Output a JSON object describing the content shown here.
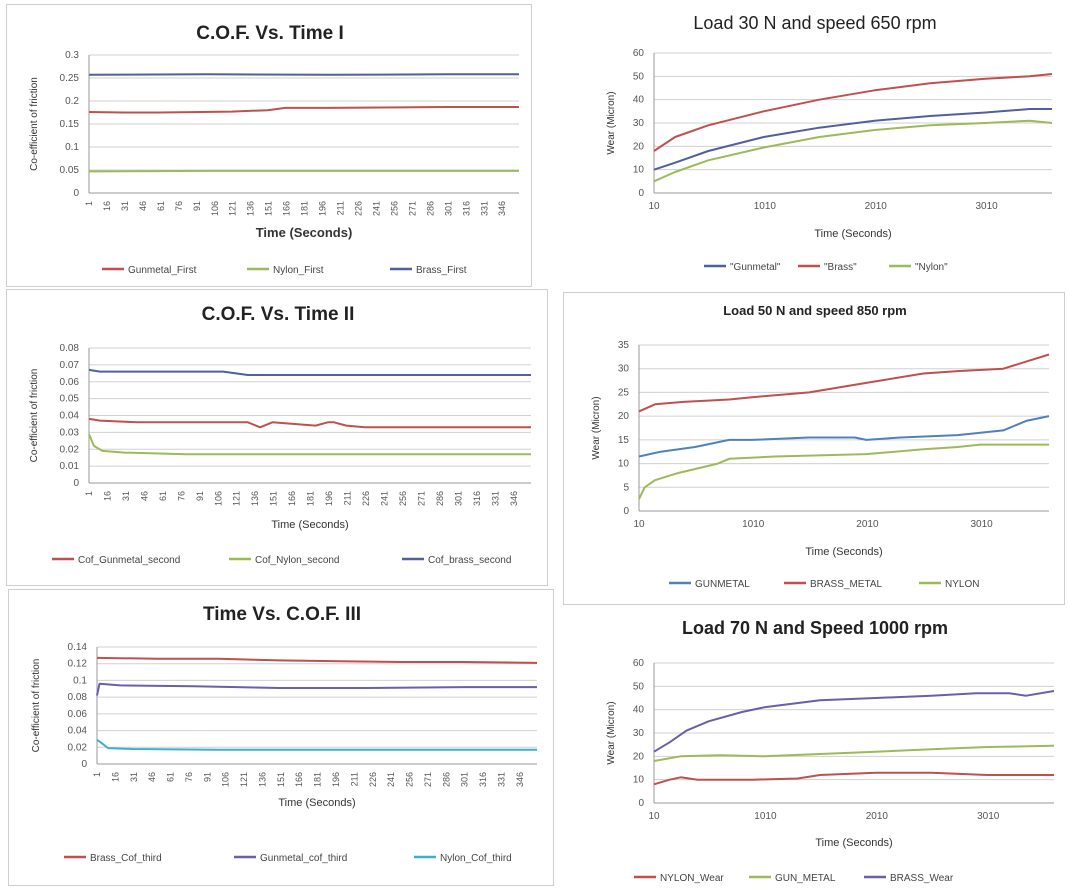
{
  "chart_data": [
    {
      "type": "line",
      "title": "C.O.F. Vs. Time I",
      "xlabel": "Time (Seconds)",
      "ylabel": "Co-efficient of friction",
      "ylim": [
        0,
        0.3
      ],
      "yticks": [
        "0",
        "0.05",
        "0.1",
        "0.15",
        "0.2",
        "0.25",
        "0.3"
      ],
      "xticks": [
        "1",
        "16",
        "31",
        "46",
        "61",
        "76",
        "91",
        "106",
        "121",
        "136",
        "151",
        "166",
        "181",
        "196",
        "211",
        "226",
        "241",
        "256",
        "271",
        "286",
        "301",
        "316",
        "331",
        "346"
      ],
      "xlim": [
        1,
        360
      ],
      "grid": true,
      "legend": "bottom",
      "series": [
        {
          "name": "Gunmetal_First",
          "color": "#c0504d",
          "x": [
            1,
            30,
            60,
            120,
            150,
            165,
            200,
            260,
            300,
            360
          ],
          "y": [
            0.176,
            0.175,
            0.175,
            0.177,
            0.18,
            0.185,
            0.185,
            0.186,
            0.187,
            0.187
          ]
        },
        {
          "name": "Nylon_First",
          "color": "#9bbb59",
          "x": [
            1,
            100,
            200,
            300,
            360
          ],
          "y": [
            0.047,
            0.048,
            0.048,
            0.048,
            0.048
          ]
        },
        {
          "name": "Brass_First",
          "color": "#4f5f9f",
          "x": [
            1,
            100,
            200,
            300,
            360
          ],
          "y": [
            0.257,
            0.258,
            0.257,
            0.258,
            0.258
          ]
        }
      ]
    },
    {
      "type": "line",
      "title": "C.O.F. Vs. Time II",
      "xlabel": "Time (Seconds)",
      "ylabel": "Co-efficient of friction",
      "ylim": [
        0,
        0.08
      ],
      "yticks": [
        "0",
        "0.01",
        "0.02",
        "0.03",
        "0.04",
        "0.05",
        "0.06",
        "0.07",
        "0.08"
      ],
      "xticks": [
        "1",
        "16",
        "31",
        "46",
        "61",
        "76",
        "91",
        "106",
        "121",
        "136",
        "151",
        "166",
        "181",
        "196",
        "211",
        "226",
        "241",
        "256",
        "271",
        "286",
        "301",
        "316",
        "331",
        "346"
      ],
      "xlim": [
        1,
        360
      ],
      "grid": true,
      "legend": "bottom",
      "series": [
        {
          "name": "Cof_Gunmetal_second",
          "color": "#c0504d",
          "x": [
            1,
            10,
            40,
            100,
            130,
            140,
            150,
            185,
            195,
            200,
            210,
            225,
            260,
            300,
            360
          ],
          "y": [
            0.038,
            0.037,
            0.036,
            0.036,
            0.036,
            0.033,
            0.036,
            0.034,
            0.036,
            0.036,
            0.034,
            0.033,
            0.033,
            0.033,
            0.033
          ]
        },
        {
          "name": "Cof_Nylon_second",
          "color": "#9bbb59",
          "x": [
            1,
            5,
            12,
            30,
            80,
            150,
            250,
            360
          ],
          "y": [
            0.029,
            0.022,
            0.019,
            0.018,
            0.017,
            0.017,
            0.017,
            0.017
          ]
        },
        {
          "name": "Cof_brass_second",
          "color": "#4f5f9f",
          "x": [
            1,
            10,
            60,
            110,
            130,
            150,
            200,
            260,
            340,
            360
          ],
          "y": [
            0.067,
            0.066,
            0.066,
            0.066,
            0.064,
            0.064,
            0.064,
            0.064,
            0.064,
            0.064
          ]
        }
      ]
    },
    {
      "type": "line",
      "title": "Time Vs. C.O.F. III",
      "xlabel": "Time (Seconds)",
      "ylabel": "Co-efficient of friction",
      "ylim": [
        0,
        0.14
      ],
      "yticks": [
        "0",
        "0.02",
        "0.04",
        "0.06",
        "0.08",
        "0.1",
        "0.12",
        "0.14"
      ],
      "xticks": [
        "1",
        "16",
        "31",
        "46",
        "61",
        "76",
        "91",
        "106",
        "121",
        "136",
        "151",
        "166",
        "181",
        "196",
        "211",
        "226",
        "241",
        "256",
        "271",
        "286",
        "301",
        "316",
        "331",
        "346"
      ],
      "xlim": [
        1,
        360
      ],
      "grid": true,
      "legend": "bottom",
      "series": [
        {
          "name": "Brass_Cof_third",
          "color": "#c0504d",
          "x": [
            1,
            50,
            100,
            150,
            200,
            250,
            300,
            360
          ],
          "y": [
            0.127,
            0.126,
            0.126,
            0.124,
            0.123,
            0.122,
            0.122,
            0.121
          ]
        },
        {
          "name": "Gunmetal_cof_third",
          "color": "#6a5fa8",
          "x": [
            1,
            3,
            20,
            80,
            150,
            220,
            300,
            360
          ],
          "y": [
            0.082,
            0.096,
            0.094,
            0.093,
            0.091,
            0.091,
            0.092,
            0.092
          ]
        },
        {
          "name": "Nylon_Cof_third",
          "color": "#3cb0c8",
          "x": [
            1,
            4,
            10,
            30,
            100,
            200,
            300,
            360
          ],
          "y": [
            0.029,
            0.026,
            0.019,
            0.018,
            0.017,
            0.017,
            0.017,
            0.017
          ]
        }
      ]
    },
    {
      "type": "line",
      "title": "Load 30 N and speed 650 rpm",
      "xlabel": "Time (Seconds)",
      "ylabel": "Wear (Micron)",
      "ylim": [
        0,
        60
      ],
      "yticks": [
        "0",
        "10",
        "20",
        "30",
        "40",
        "50",
        "60"
      ],
      "xticks": [
        "10",
        "1010",
        "2010",
        "3010"
      ],
      "xlim": [
        10,
        3600
      ],
      "grid": true,
      "legend": "bottom",
      "series": [
        {
          "name": "\"Gunmetal\"",
          "color": "#4f5f9f",
          "x": [
            10,
            200,
            500,
            1000,
            1500,
            2000,
            2500,
            3000,
            3400,
            3600
          ],
          "y": [
            10,
            13,
            18,
            24,
            28,
            31,
            33,
            34.5,
            36,
            36
          ]
        },
        {
          "name": "\"Brass\"",
          "color": "#c0504d",
          "x": [
            10,
            200,
            500,
            1000,
            1500,
            2000,
            2500,
            3000,
            3400,
            3600
          ],
          "y": [
            18,
            24,
            29,
            35,
            40,
            44,
            47,
            49,
            50,
            51
          ]
        },
        {
          "name": "\"Nylon\"",
          "color": "#9bbb59",
          "x": [
            10,
            200,
            500,
            1000,
            1500,
            2000,
            2500,
            3000,
            3400,
            3600
          ],
          "y": [
            5,
            9,
            14,
            19.5,
            24,
            27,
            29,
            30,
            31,
            30
          ]
        }
      ]
    },
    {
      "type": "line",
      "title": "Load 50 N and speed 850 rpm",
      "xlabel": "Time (Seconds)",
      "ylabel": "Wear (Micron)",
      "ylim": [
        0,
        35
      ],
      "yticks": [
        "0",
        "5",
        "10",
        "15",
        "20",
        "25",
        "30",
        "35"
      ],
      "xticks": [
        "10",
        "1010",
        "2010",
        "3010"
      ],
      "xlim": [
        10,
        3600
      ],
      "grid": true,
      "legend": "bottom",
      "series": [
        {
          "name": "GUNMETAL",
          "color": "#4f81bd",
          "x": [
            10,
            200,
            500,
            800,
            1000,
            1500,
            1900,
            2000,
            2300,
            2800,
            3200,
            3400,
            3600
          ],
          "y": [
            11.5,
            12.5,
            13.5,
            15,
            15,
            15.5,
            15.5,
            15,
            15.5,
            16,
            17,
            19,
            20
          ]
        },
        {
          "name": "BRASS_METAL",
          "color": "#c0504d",
          "x": [
            10,
            150,
            400,
            800,
            1000,
            1500,
            2000,
            2500,
            2800,
            3200,
            3400,
            3600
          ],
          "y": [
            21,
            22.5,
            23,
            23.5,
            24,
            25,
            27,
            29,
            29.5,
            30,
            31.5,
            33
          ]
        },
        {
          "name": "NYLON",
          "color": "#9bbb59",
          "x": [
            10,
            60,
            150,
            350,
            700,
            800,
            1200,
            2000,
            2500,
            2800,
            3000,
            3300,
            3600
          ],
          "y": [
            2.5,
            5,
            6.5,
            8,
            10,
            11,
            11.5,
            12,
            13,
            13.5,
            14,
            14,
            14
          ]
        }
      ]
    },
    {
      "type": "line",
      "title": "Load 70 N and Speed 1000 rpm",
      "xlabel": "Time (Seconds)",
      "ylabel": "Wear (Micron)",
      "ylim": [
        0,
        60
      ],
      "yticks": [
        "0",
        "10",
        "20",
        "30",
        "40",
        "50",
        "60"
      ],
      "xticks": [
        "10",
        "1010",
        "2010",
        "3010"
      ],
      "xlim": [
        10,
        3600
      ],
      "grid": true,
      "legend": "bottom",
      "series": [
        {
          "name": "NYLON_Wear",
          "color": "#c0504d",
          "x": [
            10,
            150,
            250,
            400,
            900,
            1300,
            1500,
            2000,
            2500,
            3000,
            3600
          ],
          "y": [
            8,
            10,
            11,
            10,
            10,
            10.5,
            12,
            13,
            13,
            12,
            12
          ]
        },
        {
          "name": "GUN_METAL",
          "color": "#9bbb59",
          "x": [
            10,
            250,
            600,
            1000,
            1500,
            2000,
            2500,
            3000,
            3600
          ],
          "y": [
            18,
            20,
            20.5,
            20,
            21,
            22,
            23,
            24,
            24.5
          ]
        },
        {
          "name": "BRASS_Wear",
          "color": "#6a5fa8",
          "x": [
            10,
            150,
            300,
            500,
            800,
            1000,
            1500,
            2000,
            2500,
            2900,
            3200,
            3350,
            3600
          ],
          "y": [
            22,
            26,
            31,
            35,
            39,
            41,
            44,
            45,
            46,
            47,
            47,
            46,
            48
          ]
        }
      ]
    }
  ]
}
